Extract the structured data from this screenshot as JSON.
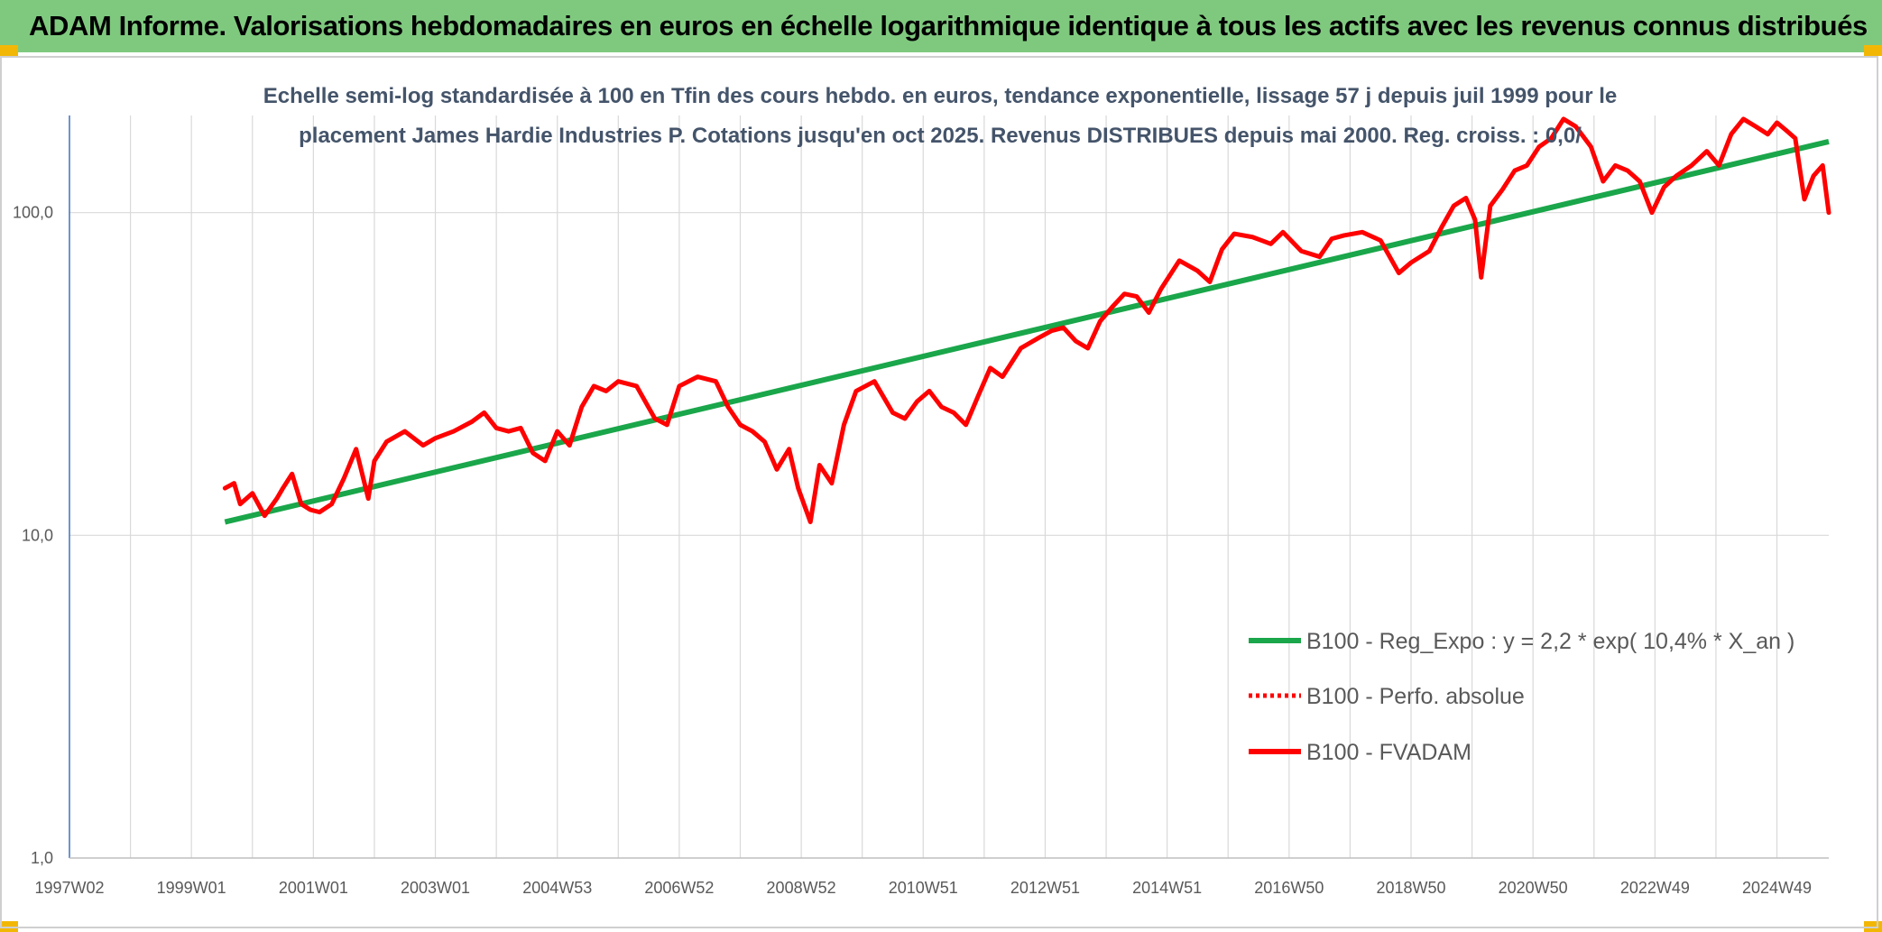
{
  "banner": {
    "title": "ADAM Informe. Valorisations hebdomadaires en euros en échelle logarithmique identique à tous les actifs avec les revenus connus distribués"
  },
  "colors": {
    "banner_bg": "#7fc97f",
    "corner_accent": "#f2b705",
    "trend_line": "#1aa64a",
    "price_line": "#ff0000",
    "grid": "#d9d9d9",
    "axis": "#4472c4",
    "title_text": "#44546a"
  },
  "chart_data": {
    "type": "line",
    "title_lines": [
      "Echelle semi-log standardisée à 100 en Tfin des cours hebdo. en euros, tendance exponentielle, lissage 57 j depuis juil 1999 pour le",
      "placement James Hardie Industries P. Cotations jusqu'en oct 2025. Revenus DISTRIBUES depuis mai 2000. Reg. croiss. : 0,0/"
    ],
    "y_scale": "log",
    "ylim": [
      1,
      200
    ],
    "y_ticks": [
      {
        "value": 1,
        "label": "1,0"
      },
      {
        "value": 10,
        "label": "10,0"
      },
      {
        "value": 100,
        "label": "100,0"
      }
    ],
    "xlim": [
      1997.0,
      2025.85
    ],
    "x_ticks": [
      {
        "value": 1997.0,
        "label": "1997W02"
      },
      {
        "value": 1999.0,
        "label": "1999W01"
      },
      {
        "value": 2001.0,
        "label": "2001W01"
      },
      {
        "value": 2003.0,
        "label": "2003W01"
      },
      {
        "value": 2005.0,
        "label": "2004W53"
      },
      {
        "value": 2007.0,
        "label": "2006W52"
      },
      {
        "value": 2009.0,
        "label": "2008W52"
      },
      {
        "value": 2011.0,
        "label": "2010W51"
      },
      {
        "value": 2013.0,
        "label": "2012W51"
      },
      {
        "value": 2015.0,
        "label": "2014W51"
      },
      {
        "value": 2017.0,
        "label": "2016W50"
      },
      {
        "value": 2019.0,
        "label": "2018W50"
      },
      {
        "value": 2021.0,
        "label": "2020W50"
      },
      {
        "value": 2023.0,
        "label": "2022W49"
      },
      {
        "value": 2025.0,
        "label": "2024W49"
      }
    ],
    "legend_position": "right-middle",
    "series": [
      {
        "name": "B100 - Reg_Expo : y = 2,2 * exp( 10,4% *  X_an )",
        "style": "solid-green",
        "x": [
          1999.55,
          2025.85
        ],
        "y": [
          11.0,
          166.0
        ]
      },
      {
        "name": "B100 - Perfo. absolue",
        "style": "dotted-red",
        "x": [],
        "y": []
      },
      {
        "name": "B100 - FVADAM",
        "style": "solid-red",
        "x": [
          1999.55,
          1999.7,
          1999.8,
          2000.0,
          2000.2,
          2000.4,
          2000.5,
          2000.65,
          2000.8,
          2000.95,
          2001.1,
          2001.3,
          2001.5,
          2001.7,
          2001.9,
          2002.0,
          2002.2,
          2002.5,
          2002.8,
          2003.0,
          2003.3,
          2003.6,
          2003.8,
          2004.0,
          2004.2,
          2004.4,
          2004.6,
          2004.8,
          2005.0,
          2005.2,
          2005.4,
          2005.6,
          2005.8,
          2006.0,
          2006.3,
          2006.6,
          2006.8,
          2007.0,
          2007.3,
          2007.6,
          2007.8,
          2008.0,
          2008.2,
          2008.4,
          2008.6,
          2008.8,
          2008.95,
          2009.15,
          2009.3,
          2009.5,
          2009.7,
          2009.9,
          2010.2,
          2010.5,
          2010.7,
          2010.9,
          2011.1,
          2011.3,
          2011.5,
          2011.7,
          2011.9,
          2012.1,
          2012.3,
          2012.6,
          2012.9,
          2013.1,
          2013.3,
          2013.5,
          2013.7,
          2013.9,
          2014.1,
          2014.3,
          2014.5,
          2014.7,
          2014.9,
          2015.2,
          2015.5,
          2015.7,
          2015.9,
          2016.1,
          2016.4,
          2016.7,
          2016.9,
          2017.2,
          2017.5,
          2017.7,
          2017.9,
          2018.2,
          2018.5,
          2018.8,
          2019.0,
          2019.3,
          2019.5,
          2019.7,
          2019.9,
          2020.05,
          2020.15,
          2020.3,
          2020.5,
          2020.7,
          2020.9,
          2021.1,
          2021.3,
          2021.5,
          2021.7,
          2021.95,
          2022.15,
          2022.35,
          2022.55,
          2022.75,
          2022.95,
          2023.15,
          2023.35,
          2023.6,
          2023.85,
          2024.05,
          2024.25,
          2024.45,
          2024.65,
          2024.85,
          2025.0,
          2025.15,
          2025.3,
          2025.45,
          2025.6,
          2025.75,
          2025.85
        ],
        "y": [
          14.0,
          14.5,
          12.5,
          13.5,
          11.5,
          13.0,
          14.0,
          15.5,
          12.5,
          12.0,
          11.8,
          12.5,
          15.0,
          18.5,
          13.0,
          17.0,
          19.5,
          21.0,
          19.0,
          20.0,
          21.0,
          22.5,
          24.0,
          21.5,
          21.0,
          21.5,
          18.0,
          17.0,
          21.0,
          19.0,
          25.0,
          29.0,
          28.0,
          30.0,
          29.0,
          23.0,
          22.0,
          29.0,
          31.0,
          30.0,
          25.0,
          22.0,
          21.0,
          19.5,
          16.0,
          18.5,
          14.0,
          11.0,
          16.5,
          14.5,
          22.0,
          28.0,
          30.0,
          24.0,
          23.0,
          26.0,
          28.0,
          25.0,
          24.0,
          22.0,
          27.0,
          33.0,
          31.0,
          38.0,
          41.0,
          43.0,
          44.0,
          40.0,
          38.0,
          46.0,
          51.0,
          56.0,
          55.0,
          49.0,
          58.0,
          71.0,
          66.0,
          61.0,
          77.0,
          86.0,
          84.0,
          80.0,
          87.0,
          76.0,
          73.0,
          83.0,
          85.0,
          87.0,
          82.0,
          65.0,
          70.0,
          76.0,
          90.0,
          105.0,
          111.0,
          95.0,
          63.0,
          105.0,
          118.0,
          135.0,
          140.0,
          160.0,
          170.0,
          195.0,
          185.0,
          160.0,
          125.0,
          140.0,
          135.0,
          125.0,
          100.0,
          120.0,
          130.0,
          140.0,
          155.0,
          140.0,
          175.0,
          195.0,
          185.0,
          175.0,
          190.0,
          180.0,
          170.0,
          110.0,
          130.0,
          140.0,
          100.0
        ]
      }
    ]
  }
}
